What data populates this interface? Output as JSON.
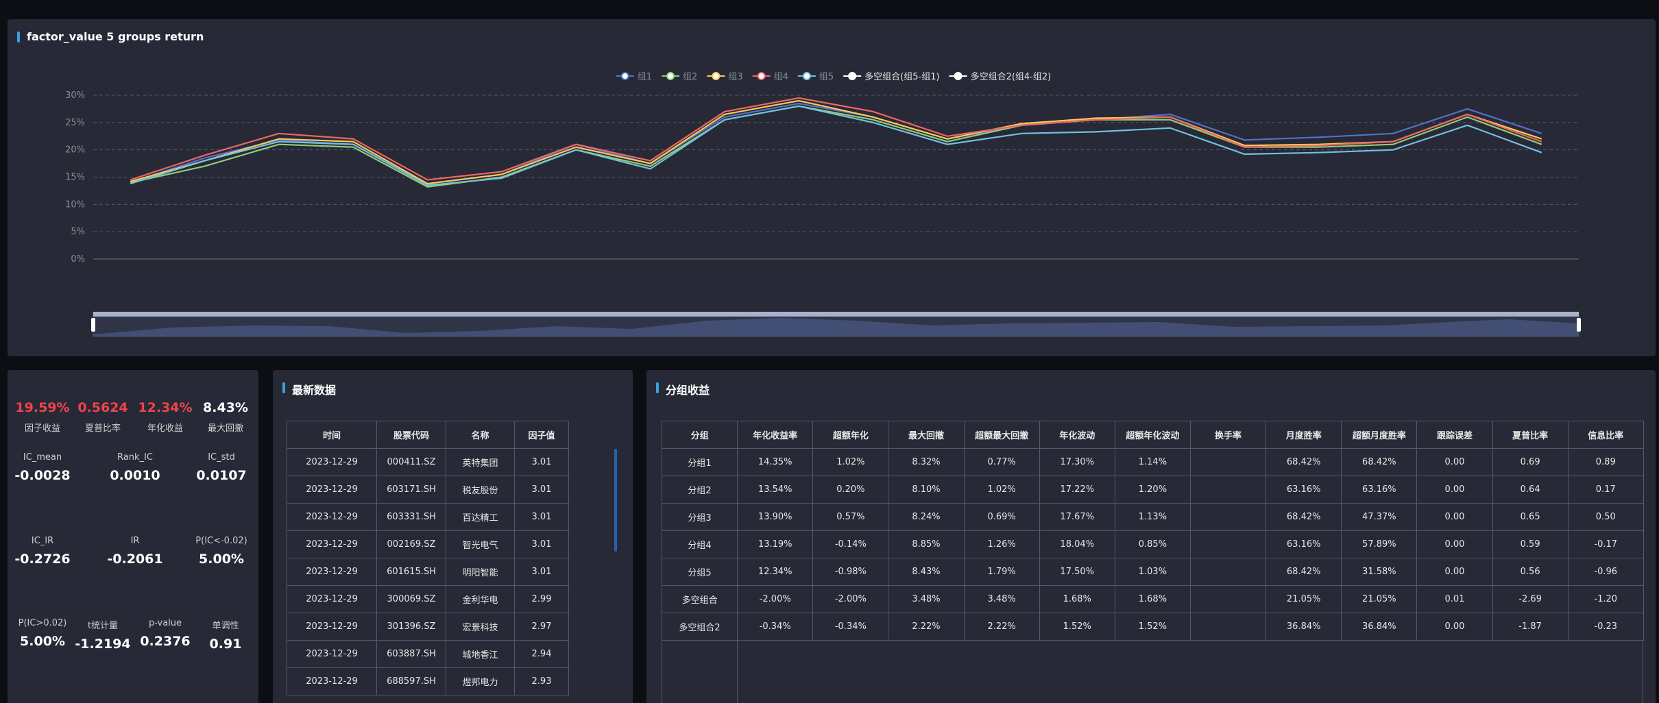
{
  "chart_data": {
    "type": "line",
    "title": "factor_value 5 groups return",
    "categories": [
      null,
      null,
      null,
      null,
      null,
      null,
      null,
      null,
      null,
      null,
      null,
      null,
      null,
      null,
      null,
      null,
      null,
      null,
      null,
      null
    ],
    "series": [
      {
        "name": "组1",
        "color": "#5470c6",
        "values": [
          14,
          18.5,
          21.8,
          21,
          13.8,
          15.5,
          21,
          17.5,
          26,
          28.5,
          26,
          22,
          24.5,
          25.5,
          26.5,
          21.8,
          22.3,
          23,
          27.5,
          23
        ]
      },
      {
        "name": "组2",
        "color": "#91cc75",
        "values": [
          14,
          17,
          21,
          20.5,
          13.2,
          15,
          20,
          17,
          25.5,
          28,
          25.5,
          21.5,
          24.5,
          25.5,
          25.5,
          20.5,
          20.5,
          21,
          26,
          21
        ]
      },
      {
        "name": "组3",
        "color": "#fac858",
        "values": [
          14.2,
          18,
          22,
          21.5,
          13.8,
          15.5,
          20.5,
          17.5,
          26.5,
          29,
          26,
          22,
          24.8,
          25.8,
          26,
          20.8,
          21,
          21.5,
          26.5,
          22
        ]
      },
      {
        "name": "组4",
        "color": "#ee6666",
        "values": [
          14.5,
          19,
          23,
          22,
          14.5,
          16,
          21,
          18,
          27,
          29.5,
          27,
          22.5,
          24.5,
          25.5,
          26,
          20.5,
          20.8,
          21.5,
          26.5,
          21.5
        ]
      },
      {
        "name": "组5",
        "color": "#73c0de",
        "values": [
          13.8,
          18,
          21.5,
          21,
          13.5,
          14.8,
          20,
          16.5,
          25.5,
          28,
          25,
          21,
          23,
          23.3,
          24,
          19.2,
          19.5,
          20,
          24.5,
          19.5
        ]
      },
      {
        "name": "多空组合(组5-组1)",
        "color": "#ffffff",
        "values": [
          null,
          null,
          null,
          null,
          null,
          null,
          null,
          null,
          null,
          null,
          null,
          null,
          null,
          null,
          null,
          null,
          null,
          null,
          null,
          null
        ]
      },
      {
        "name": "多空组合2(组4-组2)",
        "color": "#ffffff",
        "values": [
          null,
          null,
          null,
          null,
          null,
          null,
          null,
          null,
          null,
          null,
          null,
          null,
          null,
          null,
          null,
          null,
          null,
          null,
          null,
          null
        ]
      }
    ],
    "ylim": [
      0,
      30
    ],
    "yticks": [
      {
        "value": 0,
        "label": "0%"
      },
      {
        "value": 5,
        "label": "5%"
      },
      {
        "value": 10,
        "label": "10%"
      },
      {
        "value": 15,
        "label": "15%"
      },
      {
        "value": 20,
        "label": "20%"
      },
      {
        "value": 25,
        "label": "25%"
      },
      {
        "value": 30,
        "label": "30%"
      }
    ],
    "grid": true
  },
  "stats": [
    [
      {
        "value": "19.59%",
        "label": "因子收益"
      },
      {
        "value": "0.5624",
        "label": "夏普比率"
      },
      {
        "value": "12.34%",
        "label": "年化收益"
      },
      {
        "value": "8.43%",
        "label": "最大回撤"
      }
    ],
    [
      {
        "label": "IC_mean",
        "value": "-0.0028"
      },
      {
        "label": "Rank_IC",
        "value": "0.0010"
      },
      {
        "label": "IC_std",
        "value": "0.0107"
      }
    ],
    [
      {
        "label": "IC_IR",
        "value": "-0.2726"
      },
      {
        "label": "IR",
        "value": "-0.2061"
      },
      {
        "label": "P(IC<-0.02)",
        "value": "5.00%"
      }
    ],
    [
      {
        "label": "P(IC>0.02)",
        "value": "5.00%"
      },
      {
        "label": "t统计量",
        "value": "-1.2194"
      },
      {
        "label": "p-value",
        "value": "0.2376"
      },
      {
        "label": "单调性",
        "value": "0.91"
      }
    ]
  ],
  "latest": {
    "title": "最新数据",
    "header": [
      "时间",
      "股票代码",
      "名称",
      "因子值"
    ],
    "rows": [
      [
        "2023-12-29",
        "000411.SZ",
        "英特集团",
        "3.01"
      ],
      [
        "2023-12-29",
        "603171.SH",
        "税友股份",
        "3.01"
      ],
      [
        "2023-12-29",
        "603331.SH",
        "百达精工",
        "3.01"
      ],
      [
        "2023-12-29",
        "002169.SZ",
        "智光电气",
        "3.01"
      ],
      [
        "2023-12-29",
        "601615.SH",
        "明阳智能",
        "3.01"
      ],
      [
        "2023-12-29",
        "300069.SZ",
        "金利华电",
        "2.99"
      ],
      [
        "2023-12-29",
        "301396.SZ",
        "宏景科技",
        "2.97"
      ],
      [
        "2023-12-29",
        "603887.SH",
        "城地香江",
        "2.94"
      ],
      [
        "2023-12-29",
        "688597.SH",
        "煜邦电力",
        "2.93"
      ]
    ]
  },
  "groups": {
    "title": "分组收益",
    "header": [
      "分组",
      "年化收益率",
      "超额年化",
      "最大回撤",
      "超额最大回撤",
      "年化波动",
      "超额年化波动",
      "换手率",
      "月度胜率",
      "超额月度胜率",
      "跟踪误差",
      "夏普比率",
      "信息比率"
    ],
    "rows": [
      [
        "分组1",
        "14.35%",
        "1.02%",
        "8.32%",
        "0.77%",
        "17.30%",
        "1.14%",
        null,
        "68.42%",
        "68.42%",
        "0.00",
        "0.69",
        "0.89"
      ],
      [
        "分组2",
        "13.54%",
        "0.20%",
        "8.10%",
        "1.02%",
        "17.22%",
        "1.20%",
        null,
        "63.16%",
        "63.16%",
        "0.00",
        "0.64",
        "0.17"
      ],
      [
        "分组3",
        "13.90%",
        "0.57%",
        "8.24%",
        "0.69%",
        "17.67%",
        "1.13%",
        null,
        "68.42%",
        "47.37%",
        "0.00",
        "0.65",
        "0.50"
      ],
      [
        "分组4",
        "13.19%",
        "-0.14%",
        "8.85%",
        "1.26%",
        "18.04%",
        "0.85%",
        null,
        "63.16%",
        "57.89%",
        "0.00",
        "0.59",
        "-0.17"
      ],
      [
        "分组5",
        "12.34%",
        "-0.98%",
        "8.43%",
        "1.79%",
        "17.50%",
        "1.03%",
        null,
        "68.42%",
        "31.58%",
        "0.00",
        "0.56",
        "-0.96"
      ],
      [
        "多空组合",
        "-2.00%",
        "-2.00%",
        "3.48%",
        "3.48%",
        "1.68%",
        "1.68%",
        null,
        "21.05%",
        "21.05%",
        "0.01",
        "-2.69",
        "-1.20"
      ],
      [
        "多空组合2",
        "-0.34%",
        "-0.34%",
        "2.22%",
        "2.22%",
        "1.52%",
        "1.52%",
        null,
        "36.84%",
        "36.84%",
        "0.00",
        "-1.87",
        "-0.23"
      ]
    ]
  }
}
